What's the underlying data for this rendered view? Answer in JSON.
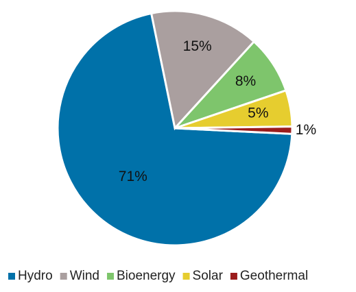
{
  "chart_data": {
    "type": "pie",
    "categories": [
      "Hydro",
      "Wind",
      "Bioenergy",
      "Solar",
      "Geothermal"
    ],
    "values": [
      71,
      15,
      8,
      5,
      1
    ],
    "value_labels": [
      "71%",
      "15%",
      "8%",
      "5%",
      "1%"
    ],
    "colors": [
      "#0071a9",
      "#aa9f9f",
      "#7ec56c",
      "#e6cd2f",
      "#9b1c1c"
    ],
    "legend": "bottom"
  }
}
